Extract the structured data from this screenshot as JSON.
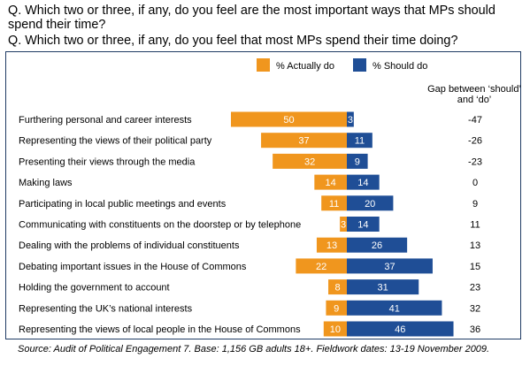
{
  "questions": [
    "Q. Which two or three, if any, do you feel are the most important ways that MPs should spend their time?",
    "Q. Which two or three, if any, do you feel that most MPs spend their time doing?"
  ],
  "source": "Source: Audit of Political Engagement 7. Base: 1,156 GB adults 18+. Fieldwork dates: 13-19 November 2009.",
  "colors": {
    "actually": "#f0961e",
    "should": "#1f4e96",
    "frame": "#1f3b64"
  },
  "chart_data": {
    "type": "bar",
    "orientation": "horizontal-diverging",
    "title": "",
    "legend": [
      "% Actually do",
      "% Should do"
    ],
    "legend_placement": "top-center",
    "gap_header": "Gap between ‘should’ and ‘do’",
    "categories": [
      "Furthering personal and career interests",
      "Representing the views of their political party",
      "Presenting their views through the media",
      "Making laws",
      "Participating in local public meetings and events",
      "Communicating with constituents on the doorstep or by telephone",
      "Dealing with the problems of individual constituents",
      "Debating important issues in the House of Commons",
      "Holding the government to account",
      "Representing the UK’s national interests",
      "Representing the views of local people in the House of Commons"
    ],
    "series": [
      {
        "name": "% Actually do",
        "values": [
          50,
          37,
          32,
          14,
          11,
          3,
          13,
          22,
          8,
          9,
          10
        ]
      },
      {
        "name": "% Should do",
        "values": [
          3,
          11,
          9,
          14,
          20,
          14,
          26,
          37,
          31,
          41,
          46
        ]
      }
    ],
    "gap_values": [
      "-47",
      "-26",
      "-23",
      "0",
      "9",
      "11",
      "13",
      "15",
      "23",
      "32",
      "36"
    ]
  }
}
